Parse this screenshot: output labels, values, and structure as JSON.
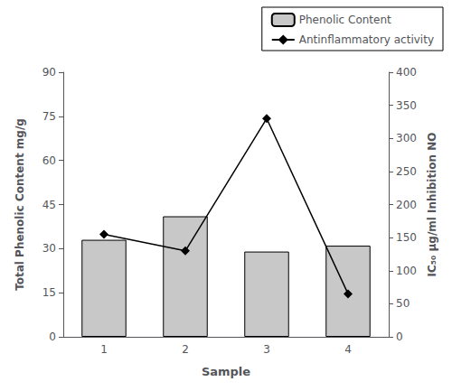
{
  "chart_data": {
    "type": "bar",
    "xlabel": "Sample",
    "ylabel": "Total Phenolic Content mg/g",
    "y2label": "IC₅₀ μg/ml Inhibition NO",
    "categories": [
      "1",
      "2",
      "3",
      "4"
    ],
    "series": [
      {
        "name": "Phenolic Content",
        "type": "bar",
        "color": "#c8c8c8",
        "values": [
          33,
          41,
          29,
          31
        ]
      },
      {
        "name": "Antinflammatory activity",
        "type": "line",
        "color": "#000000",
        "marker": "diamond",
        "line_style": "solid",
        "axis": "y2",
        "values": [
          155,
          130,
          330,
          65
        ]
      }
    ],
    "ylim": [
      0,
      90
    ],
    "yticks": [
      0,
      15,
      30,
      45,
      60,
      75,
      90
    ],
    "y2lim": [
      0,
      400
    ],
    "y2ticks": [
      0,
      50,
      100,
      150,
      200,
      250,
      300,
      350,
      400
    ],
    "grid": false,
    "legend": "upper right"
  }
}
